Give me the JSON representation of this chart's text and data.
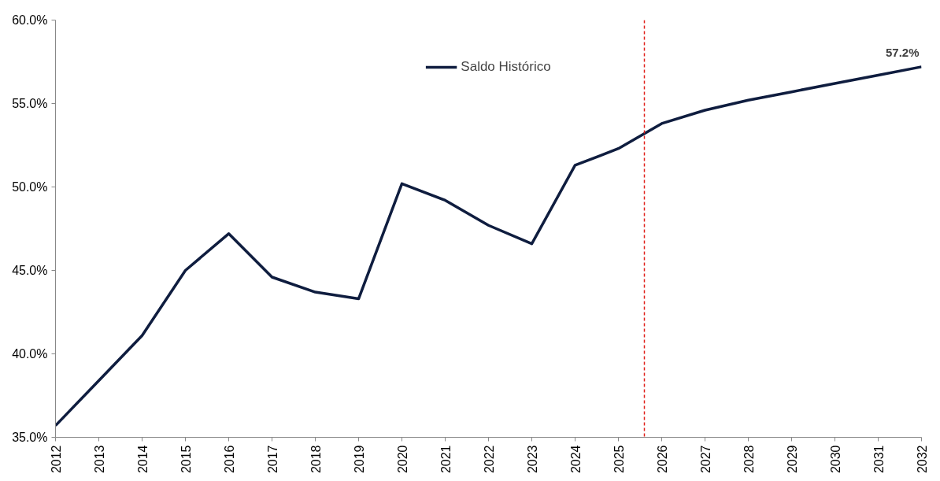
{
  "chart_data": {
    "type": "line",
    "x": [
      2012,
      2013,
      2014,
      2015,
      2016,
      2017,
      2018,
      2019,
      2020,
      2021,
      2022,
      2023,
      2024,
      2025,
      2026,
      2027,
      2028,
      2029,
      2030,
      2031,
      2032
    ],
    "series": [
      {
        "name": "Saldo Histórico",
        "color": "#0f1d3f",
        "values": [
          35.7,
          38.4,
          41.1,
          45.0,
          47.2,
          44.6,
          43.7,
          43.3,
          50.2,
          49.2,
          47.7,
          46.6,
          51.3,
          52.3,
          53.8,
          54.6,
          55.2,
          55.7,
          56.2,
          56.7,
          57.2
        ],
        "value_labels": [
          null,
          null,
          null,
          null,
          null,
          null,
          null,
          null,
          null,
          null,
          null,
          null,
          null,
          null,
          null,
          null,
          null,
          null,
          null,
          null,
          "57.2%"
        ]
      }
    ],
    "xlim": [
      2012,
      2032
    ],
    "xticks": [
      2012,
      2013,
      2014,
      2015,
      2016,
      2017,
      2018,
      2019,
      2020,
      2021,
      2022,
      2023,
      2024,
      2025,
      2026,
      2027,
      2028,
      2029,
      2030,
      2031,
      2032
    ],
    "ylim": [
      35,
      60
    ],
    "yticks": [
      {
        "value": 35,
        "label": "35.0%"
      },
      {
        "value": 40,
        "label": "40.0%"
      },
      {
        "value": 45,
        "label": "45.0%"
      },
      {
        "value": 50,
        "label": "50.0%"
      },
      {
        "value": 55,
        "label": "55.0%"
      },
      {
        "value": 60,
        "label": "60.0%"
      }
    ],
    "ref_lines": [
      {
        "axis": "x",
        "value": 2025.6,
        "label": null,
        "color": "#e0201b",
        "line_style": "dashed"
      }
    ],
    "legend": "top",
    "grid": false,
    "marker": "none",
    "line_style": "solid"
  }
}
